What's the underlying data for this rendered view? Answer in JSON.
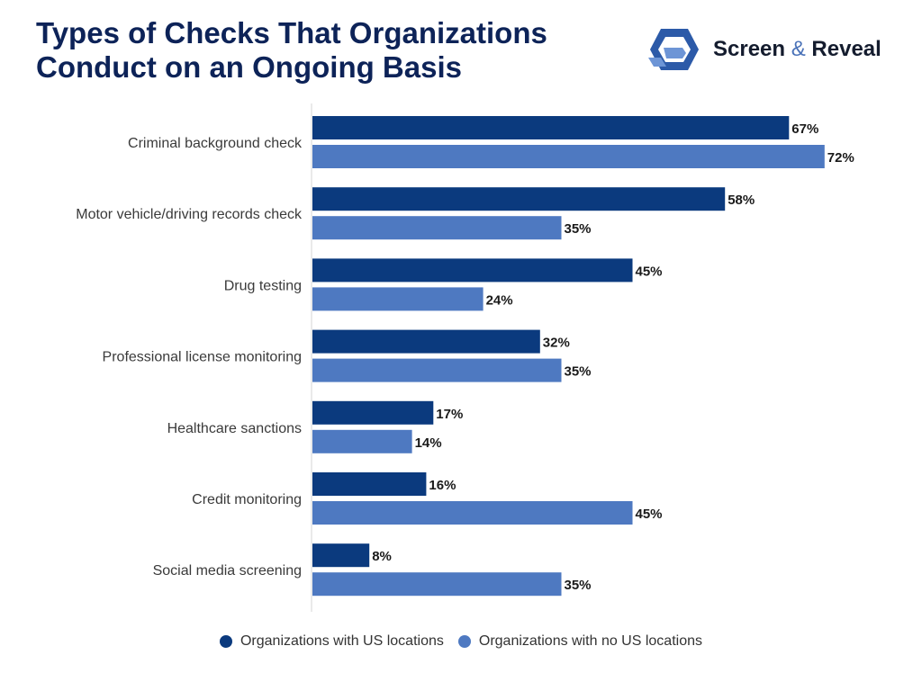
{
  "header": {
    "title_line1": "Types of Checks That Organizations",
    "title_line2": "Conduct on an Ongoing Basis"
  },
  "brand": {
    "name_part1": "Screen",
    "ampersand": "&",
    "name_part2": "Reveal",
    "logo_icon": "screen-reveal-logo-icon"
  },
  "chart_data": {
    "type": "bar",
    "orientation": "horizontal",
    "title": "Types of Checks That Organizations Conduct on an Ongoing Basis",
    "categories": [
      "Criminal background check",
      "Motor vehicle/driving records check",
      "Drug testing",
      "Professional license monitoring",
      "Healthcare sanctions",
      "Credit monitoring",
      "Social media screening"
    ],
    "series": [
      {
        "name": "Organizations with US locations",
        "color": "#0b3a7e",
        "values": [
          67,
          58,
          45,
          32,
          17,
          16,
          8
        ],
        "labels": [
          "67%",
          "58%",
          "45%",
          "32%",
          "17%",
          "16%",
          "8%"
        ]
      },
      {
        "name": "Organizations with no US locations",
        "color": "#4e79c1",
        "values": [
          72,
          35,
          24,
          35,
          14,
          45,
          35
        ],
        "labels": [
          "72%",
          "35%",
          "24%",
          "35%",
          "14%",
          "45%",
          "35%"
        ]
      }
    ],
    "xlim": [
      0,
      100
    ],
    "grid": false,
    "legend_position": "bottom-center"
  }
}
